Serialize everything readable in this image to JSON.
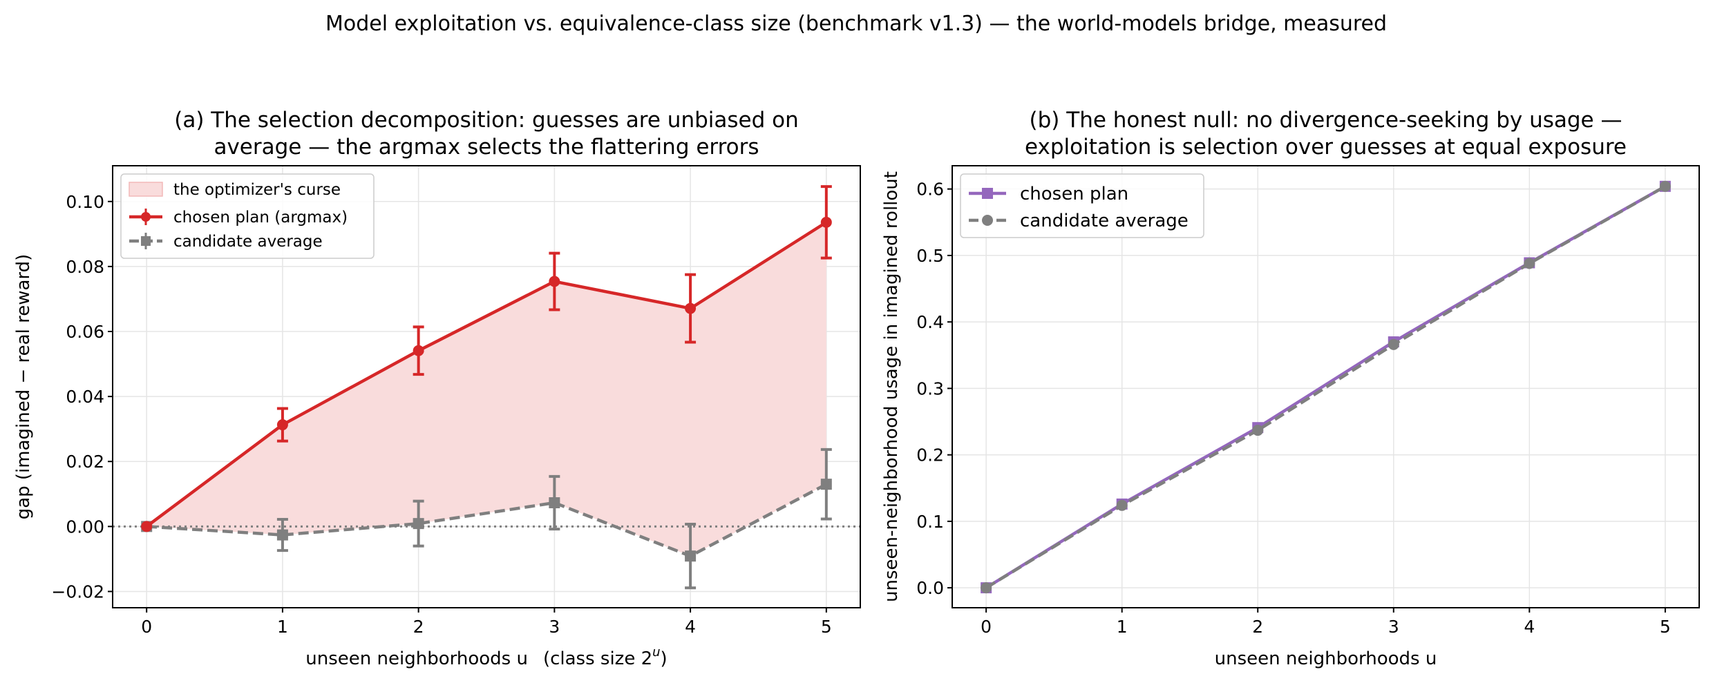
{
  "figure": {
    "suptitle": "Model exploitation vs. equivalence-class size (benchmark v1.3) — the world-models bridge, measured"
  },
  "colors": {
    "chosen_a": "#d62728",
    "candidate": "#7f7f7f",
    "chosen_b": "#9467bd",
    "fill": "#f9dcdc",
    "reference_line": "#808080"
  },
  "chart_data": [
    {
      "type": "line",
      "title_lines": [
        "(a) The selection decomposition: guesses are unbiased on",
        "average — the argmax selects the flattering errors"
      ],
      "xlabel": "unseen neighborhoods u",
      "xlabel_suffix": "(class size 2",
      "xlabel_sup": "u",
      "xlabel_close": ")",
      "ylabel": "gap  (imagined − real reward)",
      "xlim": [
        -0.25,
        5.25
      ],
      "ylim": [
        -0.025,
        0.111
      ],
      "x_ticks": [
        0,
        1,
        2,
        3,
        4,
        5
      ],
      "x_tick_labels": [
        "0",
        "1",
        "2",
        "3",
        "4",
        "5"
      ],
      "y_ticks": [
        -0.02,
        0.0,
        0.02,
        0.04,
        0.06,
        0.08,
        0.1
      ],
      "y_tick_labels": [
        "−0.02",
        "0.00",
        "0.02",
        "0.04",
        "0.06",
        "0.08",
        "0.10"
      ],
      "grid": true,
      "legend_position": "upper-left",
      "reference_line_y": 0,
      "fill_between": {
        "label": "the optimizer's curse",
        "upper": "chosen plan (argmax)",
        "lower": "candidate average"
      },
      "x": [
        0,
        1,
        2,
        3,
        4,
        5
      ],
      "series": [
        {
          "name": "chosen plan (argmax)",
          "style": "solid",
          "marker": "circle",
          "color": "#d62728",
          "values": [
            0.0,
            0.0313,
            0.0541,
            0.0754,
            0.0671,
            0.0936
          ],
          "errors": [
            0.0,
            0.005,
            0.0073,
            0.0087,
            0.0104,
            0.011
          ]
        },
        {
          "name": "candidate average",
          "style": "dashed",
          "marker": "square",
          "color": "#7f7f7f",
          "values": [
            0.0,
            -0.0026,
            0.0009,
            0.0073,
            -0.0091,
            0.013
          ],
          "errors": [
            0.0,
            0.0048,
            0.0069,
            0.0081,
            0.0098,
            0.0107
          ]
        }
      ]
    },
    {
      "type": "line",
      "title_lines": [
        "(b) The honest null: no divergence-seeking by usage —",
        "exploitation is selection over guesses at equal exposure"
      ],
      "xlabel": "unseen neighborhoods u",
      "ylabel": "unseen-neighborhood usage in imagined rollout",
      "xlim": [
        -0.25,
        5.25
      ],
      "ylim": [
        -0.03,
        0.635
      ],
      "x_ticks": [
        0,
        1,
        2,
        3,
        4,
        5
      ],
      "x_tick_labels": [
        "0",
        "1",
        "2",
        "3",
        "4",
        "5"
      ],
      "y_ticks": [
        0.0,
        0.1,
        0.2,
        0.3,
        0.4,
        0.5,
        0.6
      ],
      "y_tick_labels": [
        "0.0",
        "0.1",
        "0.2",
        "0.3",
        "0.4",
        "0.5",
        "0.6"
      ],
      "grid": true,
      "legend_position": "upper-left",
      "x": [
        0,
        1,
        2,
        3,
        4,
        5
      ],
      "series": [
        {
          "name": "chosen plan",
          "style": "solid",
          "marker": "square",
          "color": "#9467bd",
          "values": [
            0.0,
            0.126,
            0.241,
            0.37,
            0.489,
            0.604
          ]
        },
        {
          "name": "candidate average",
          "style": "dashed",
          "marker": "circle",
          "color": "#7f7f7f",
          "values": [
            0.0,
            0.124,
            0.237,
            0.366,
            0.488,
            0.604
          ]
        }
      ]
    }
  ]
}
